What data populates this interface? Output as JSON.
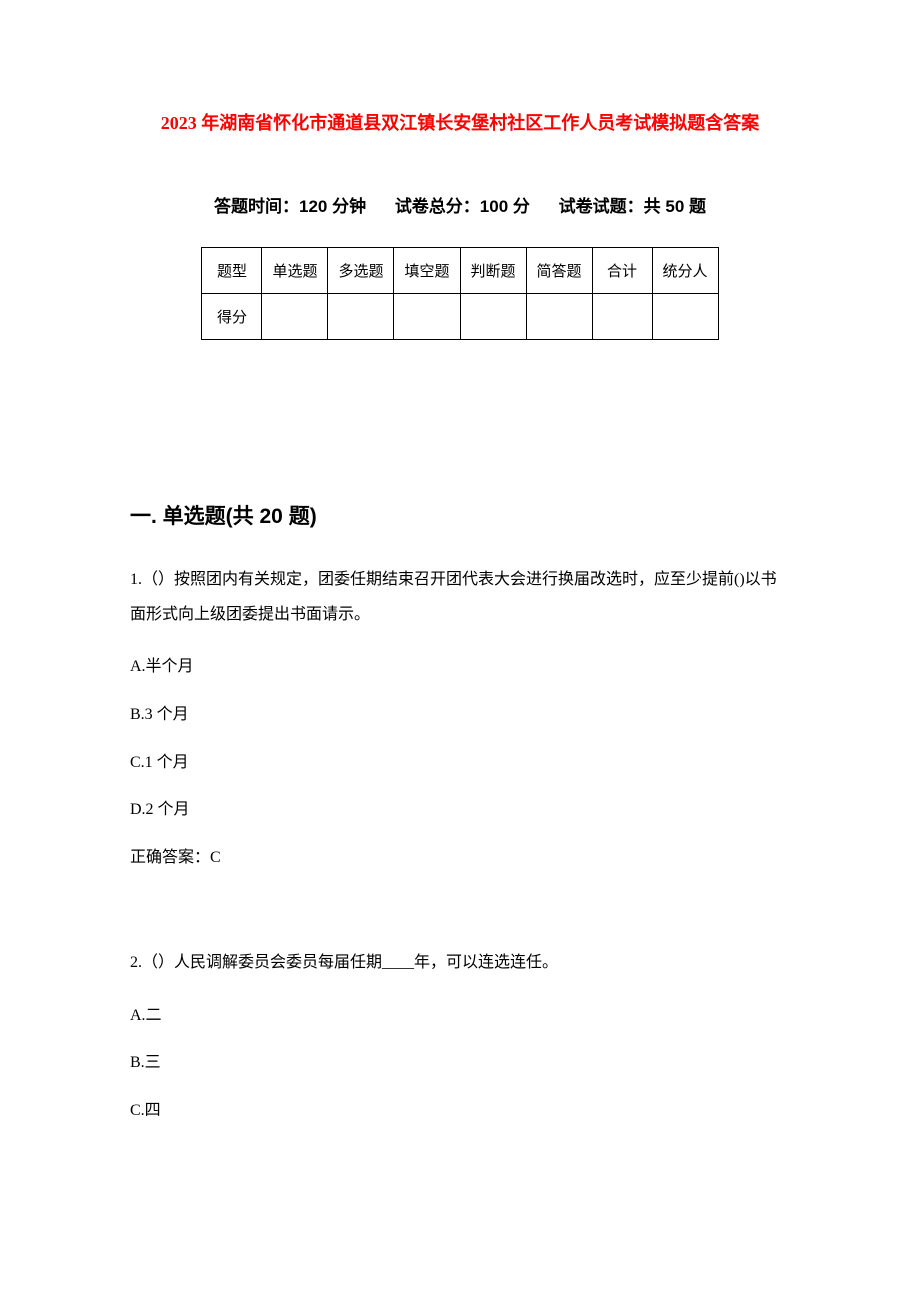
{
  "title": "2023 年湖南省怀化市通道县双江镇长安堡村社区工作人员考试模拟题含答案",
  "meta": {
    "time_label": "答题时间：120 分钟",
    "total_score_label": "试卷总分：100 分",
    "question_count_label": "试卷试题：共 50 题"
  },
  "score_table": {
    "headers": [
      "题型",
      "单选题",
      "多选题",
      "填空题",
      "判断题",
      "简答题",
      "合计",
      "统分人"
    ],
    "row_label": "得分",
    "border_color": "#000000",
    "cell_padding": 12,
    "font_size": 15
  },
  "section": {
    "heading": "一. 单选题(共 20 题)"
  },
  "questions": [
    {
      "number": "1.",
      "stem": "（）按照团内有关规定，团委任期结束召开团代表大会进行换届改选时，应至少提前()以书面形式向上级团委提出书面请示。",
      "options": [
        {
          "label": "A.半个月"
        },
        {
          "label": "B.3 个月"
        },
        {
          "label": "C.1 个月"
        },
        {
          "label": "D.2 个月"
        }
      ],
      "answer_label": "正确答案：C"
    },
    {
      "number": "2.",
      "stem": "（）人民调解委员会委员每届任期____年，可以连选连任。",
      "options": [
        {
          "label": "A.二"
        },
        {
          "label": "B.三"
        },
        {
          "label": "C.四"
        }
      ]
    }
  ],
  "colors": {
    "title": "#ff0000",
    "text": "#000000",
    "background": "#ffffff"
  },
  "typography": {
    "title_fontsize": 18,
    "meta_fontsize": 17,
    "heading_fontsize": 21,
    "body_fontsize": 16
  }
}
